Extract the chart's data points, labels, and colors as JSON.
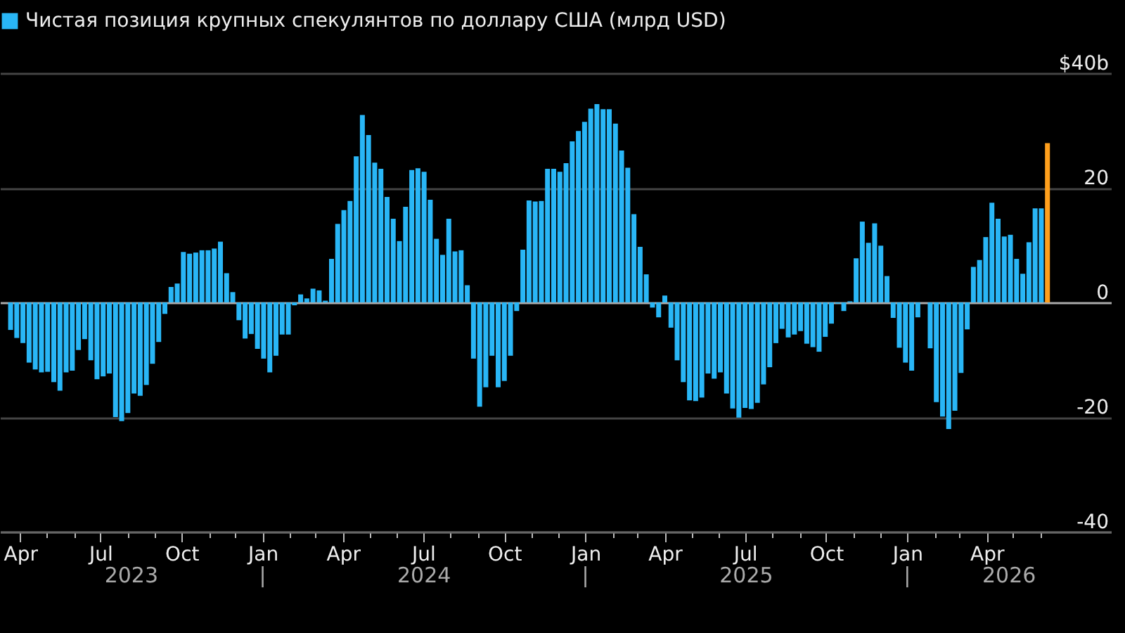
{
  "chart_data": {
    "type": "bar",
    "x": [
      "2023-03-21",
      "2023-03-28",
      "2023-04-04",
      "2023-04-11",
      "2023-04-18",
      "2023-04-25",
      "2023-05-02",
      "2023-05-09",
      "2023-05-16",
      "2023-05-23",
      "2023-05-30",
      "2023-06-06",
      "2023-06-13",
      "2023-06-20",
      "2023-06-27",
      "2023-07-04",
      "2023-07-11",
      "2023-07-18",
      "2023-07-25",
      "2023-08-01",
      "2023-08-08",
      "2023-08-15",
      "2023-08-22",
      "2023-08-29",
      "2023-09-05",
      "2023-09-12",
      "2023-09-19",
      "2023-09-26",
      "2023-10-03",
      "2023-10-10",
      "2023-10-17",
      "2023-10-24",
      "2023-10-31",
      "2023-11-07",
      "2023-11-14",
      "2023-11-21",
      "2023-11-28",
      "2023-12-05",
      "2023-12-12",
      "2023-12-19",
      "2023-12-26",
      "2024-01-02",
      "2024-01-09",
      "2024-01-16",
      "2024-01-23",
      "2024-01-30",
      "2024-02-06",
      "2024-02-13",
      "2024-02-20",
      "2024-02-27",
      "2024-03-05",
      "2024-03-12",
      "2024-03-19",
      "2024-03-26",
      "2024-04-02",
      "2024-04-09",
      "2024-04-16",
      "2024-04-23",
      "2024-04-30",
      "2024-05-07",
      "2024-05-14",
      "2024-05-21",
      "2024-05-28",
      "2024-06-04",
      "2024-06-11",
      "2024-06-18",
      "2024-06-25",
      "2024-07-02",
      "2024-07-09",
      "2024-07-16",
      "2024-07-23",
      "2024-07-30",
      "2024-08-06",
      "2024-08-13",
      "2024-08-20",
      "2024-08-27",
      "2024-09-03",
      "2024-09-10",
      "2024-09-17",
      "2024-09-24",
      "2024-10-01",
      "2024-10-08",
      "2024-10-15",
      "2024-10-22",
      "2024-10-29",
      "2024-11-05",
      "2024-11-12",
      "2024-11-19",
      "2024-11-26",
      "2024-12-03",
      "2024-12-10",
      "2024-12-17",
      "2024-12-24",
      "2024-12-31",
      "2025-01-07",
      "2025-01-14",
      "2025-01-21",
      "2025-01-28",
      "2025-02-04",
      "2025-02-11",
      "2025-02-18",
      "2025-02-25",
      "2025-03-04",
      "2025-03-11",
      "2025-03-18",
      "2025-03-25",
      "2025-04-01",
      "2025-04-08",
      "2025-04-15",
      "2025-04-22",
      "2025-04-29",
      "2025-05-06",
      "2025-05-13",
      "2025-05-20",
      "2025-05-27",
      "2025-06-03",
      "2025-06-10",
      "2025-06-17",
      "2025-06-24",
      "2025-07-01",
      "2025-07-08",
      "2025-07-15",
      "2025-07-22",
      "2025-07-29",
      "2025-08-05",
      "2025-08-12",
      "2025-08-19",
      "2025-08-26",
      "2025-09-02",
      "2025-09-09",
      "2025-09-16",
      "2025-09-23",
      "2025-09-30",
      "2025-10-07",
      "2025-10-14",
      "2025-10-21",
      "2025-10-28",
      "2025-11-04",
      "2025-11-11",
      "2025-11-18",
      "2025-11-25",
      "2025-12-02",
      "2025-12-09",
      "2025-12-16",
      "2025-12-23",
      "2025-12-30",
      "2026-01-06",
      "2026-01-13",
      "2026-01-20",
      "2026-01-27",
      "2026-02-03",
      "2026-02-10",
      "2026-02-17",
      "2026-02-24",
      "2026-03-03",
      "2026-03-10",
      "2026-03-17",
      "2026-03-24",
      "2026-03-31",
      "2026-04-07",
      "2026-04-14",
      "2026-04-21",
      "2026-04-28",
      "2026-05-05",
      "2026-05-12",
      "2026-05-19",
      "2026-05-26",
      "2026-06-02",
      "2026-06-09"
    ],
    "series": [
      {
        "name": "Чистая позиция крупных спекулянтов по доллару США (млрд USD)",
        "color": "#29b6f6",
        "values": [
          -4.8,
          -6.2,
          -7.1,
          -10.5,
          -11.7,
          -12.2,
          -12.1,
          -13.9,
          -15.4,
          -12.2,
          -11.9,
          -8.3,
          -6.4,
          -10.1,
          -13.4,
          -12.9,
          -12.4,
          -20.0,
          -20.7,
          -19.3,
          -15.9,
          -16.3,
          -14.4,
          -10.7,
          -6.9,
          -2.0,
          2.7,
          3.3,
          8.8,
          8.5,
          8.7,
          9.1,
          9.1,
          9.4,
          10.6,
          5.1,
          1.8,
          -3.1,
          -6.3,
          -5.5,
          -8.1,
          -9.8,
          -12.2,
          -9.3,
          -5.6,
          -5.6,
          -0.5,
          1.4,
          0.7,
          2.4,
          2.1,
          0.3,
          7.6,
          13.7,
          16.1,
          17.7,
          25.5,
          32.7,
          29.2,
          24.4,
          23.3,
          18.4,
          14.6,
          10.7,
          16.7,
          23.1,
          23.4,
          22.8,
          17.9,
          11.1,
          8.3,
          14.6,
          8.9,
          9.1,
          3.0,
          -9.8,
          -18.2,
          -14.8,
          -9.3,
          -14.8,
          -13.7,
          -9.3,
          -1.5,
          9.2,
          17.8,
          17.6,
          17.7,
          23.3,
          23.3,
          22.8,
          24.3,
          28.1,
          29.9,
          31.5,
          33.8,
          34.6,
          33.7,
          33.7,
          31.2,
          26.5,
          23.5,
          15.4,
          9.7,
          4.9,
          -0.9,
          -2.6,
          1.2,
          -4.4,
          -10.1,
          -13.9,
          -17.1,
          -17.2,
          -16.6,
          -12.4,
          -13.3,
          -12.2,
          -15.9,
          -18.5,
          -20.1,
          -18.4,
          -18.6,
          -17.5,
          -14.3,
          -11.3,
          -7.1,
          -4.6,
          -6.1,
          -5.6,
          -5.0,
          -7.2,
          -7.8,
          -8.6,
          -6.0,
          -3.7,
          -0.2,
          -1.5,
          0.2,
          7.7,
          14.1,
          10.4,
          13.8,
          9.9,
          4.6,
          -2.7,
          -7.9,
          -10.5,
          -11.9,
          -2.6,
          0,
          -8.0,
          -17.4,
          -19.9,
          -22.1,
          -18.9,
          -12.3,
          -4.7,
          6.2,
          7.4,
          11.4,
          17.4,
          14.6,
          11.5,
          11.8,
          7.6,
          5.0,
          10.5,
          16.4,
          16.4,
          27.8
        ],
        "colors": [
          "#29b6f6",
          "#29b6f6",
          "#29b6f6",
          "#29b6f6",
          "#29b6f6",
          "#29b6f6",
          "#29b6f6",
          "#29b6f6",
          "#29b6f6",
          "#29b6f6",
          "#29b6f6",
          "#29b6f6",
          "#29b6f6",
          "#29b6f6",
          "#29b6f6",
          "#29b6f6",
          "#29b6f6",
          "#29b6f6",
          "#29b6f6",
          "#29b6f6",
          "#29b6f6",
          "#29b6f6",
          "#29b6f6",
          "#29b6f6",
          "#29b6f6",
          "#29b6f6",
          "#29b6f6",
          "#29b6f6",
          "#29b6f6",
          "#29b6f6",
          "#29b6f6",
          "#29b6f6",
          "#29b6f6",
          "#29b6f6",
          "#29b6f6",
          "#29b6f6",
          "#29b6f6",
          "#29b6f6",
          "#29b6f6",
          "#29b6f6",
          "#29b6f6",
          "#29b6f6",
          "#29b6f6",
          "#29b6f6",
          "#29b6f6",
          "#29b6f6",
          "#29b6f6",
          "#29b6f6",
          "#29b6f6",
          "#29b6f6",
          "#29b6f6",
          "#29b6f6",
          "#29b6f6",
          "#29b6f6",
          "#29b6f6",
          "#29b6f6",
          "#29b6f6",
          "#29b6f6",
          "#29b6f6",
          "#29b6f6",
          "#29b6f6",
          "#29b6f6",
          "#29b6f6",
          "#29b6f6",
          "#29b6f6",
          "#29b6f6",
          "#29b6f6",
          "#29b6f6",
          "#29b6f6",
          "#29b6f6",
          "#29b6f6",
          "#29b6f6",
          "#29b6f6",
          "#29b6f6",
          "#29b6f6",
          "#29b6f6",
          "#29b6f6",
          "#29b6f6",
          "#29b6f6",
          "#29b6f6",
          "#29b6f6",
          "#29b6f6",
          "#29b6f6",
          "#29b6f6",
          "#29b6f6",
          "#29b6f6",
          "#29b6f6",
          "#29b6f6",
          "#29b6f6",
          "#29b6f6",
          "#29b6f6",
          "#29b6f6",
          "#29b6f6",
          "#29b6f6",
          "#29b6f6",
          "#29b6f6",
          "#29b6f6",
          "#29b6f6",
          "#29b6f6",
          "#29b6f6",
          "#29b6f6",
          "#29b6f6",
          "#29b6f6",
          "#29b6f6",
          "#29b6f6",
          "#29b6f6",
          "#29b6f6",
          "#29b6f6",
          "#29b6f6",
          "#29b6f6",
          "#29b6f6",
          "#29b6f6",
          "#29b6f6",
          "#29b6f6",
          "#29b6f6",
          "#29b6f6",
          "#29b6f6",
          "#29b6f6",
          "#29b6f6",
          "#29b6f6",
          "#29b6f6",
          "#29b6f6",
          "#29b6f6",
          "#29b6f6",
          "#29b6f6",
          "#29b6f6",
          "#29b6f6",
          "#29b6f6",
          "#29b6f6",
          "#29b6f6",
          "#29b6f6",
          "#29b6f6",
          "#29b6f6",
          "#29b6f6",
          "#29b6f6",
          "#29b6f6",
          "#29b6f6",
          "#29b6f6",
          "#29b6f6",
          "#29b6f6",
          "#29b6f6",
          "#29b6f6",
          "#29b6f6",
          "#29b6f6",
          "#29b6f6",
          "#29b6f6",
          "#29b6f6",
          "#29b6f6",
          "#29b6f6",
          "#29b6f6",
          "#29b6f6",
          "#29b6f6",
          "#29b6f6",
          "#29b6f6",
          "#29b6f6",
          "#29b6f6",
          "#29b6f6",
          "#29b6f6",
          "#29b6f6",
          "#29b6f6",
          "#29b6f6",
          "#29b6f6",
          "#29b6f6",
          "#29b6f6",
          "#29b6f6",
          "#29b6f6",
          "#29b6f6",
          "#29b6f6",
          "#ff9f1c"
        ]
      }
    ],
    "xlim": [
      "2023-03-09",
      "2026-08-20"
    ],
    "xticks": [
      {
        "value": "2023-04-01",
        "label": "Apr"
      },
      {
        "value": "2023-05-01",
        "label": null
      },
      {
        "value": "2023-06-01",
        "label": null
      },
      {
        "value": "2023-07-01",
        "label": "Jul"
      },
      {
        "value": "2023-08-01",
        "label": null
      },
      {
        "value": "2023-09-01",
        "label": null
      },
      {
        "value": "2023-10-01",
        "label": "Oct"
      },
      {
        "value": "2023-11-01",
        "label": null
      },
      {
        "value": "2023-12-01",
        "label": null
      },
      {
        "value": "2024-01-01",
        "label": "Jan"
      },
      {
        "value": "2024-02-01",
        "label": null
      },
      {
        "value": "2024-03-01",
        "label": null
      },
      {
        "value": "2024-04-01",
        "label": "Apr"
      },
      {
        "value": "2024-05-01",
        "label": null
      },
      {
        "value": "2024-06-01",
        "label": null
      },
      {
        "value": "2024-07-01",
        "label": "Jul"
      },
      {
        "value": "2024-08-01",
        "label": null
      },
      {
        "value": "2024-09-01",
        "label": null
      },
      {
        "value": "2024-10-01",
        "label": "Oct"
      },
      {
        "value": "2024-11-01",
        "label": null
      },
      {
        "value": "2024-12-01",
        "label": null
      },
      {
        "value": "2025-01-01",
        "label": "Jan"
      },
      {
        "value": "2025-02-01",
        "label": null
      },
      {
        "value": "2025-03-01",
        "label": null
      },
      {
        "value": "2025-04-01",
        "label": "Apr"
      },
      {
        "value": "2025-05-01",
        "label": null
      },
      {
        "value": "2025-06-01",
        "label": null
      },
      {
        "value": "2025-07-01",
        "label": "Jul"
      },
      {
        "value": "2025-08-01",
        "label": null
      },
      {
        "value": "2025-09-01",
        "label": null
      },
      {
        "value": "2025-10-01",
        "label": "Oct"
      },
      {
        "value": "2025-11-01",
        "label": null
      },
      {
        "value": "2025-12-01",
        "label": null
      },
      {
        "value": "2026-01-01",
        "label": "Jan"
      },
      {
        "value": "2026-02-01",
        "label": null
      },
      {
        "value": "2026-03-01",
        "label": null
      },
      {
        "value": "2026-04-01",
        "label": "Apr"
      },
      {
        "value": "2026-05-01",
        "label": null
      },
      {
        "value": "2026-06-01",
        "label": null
      }
    ],
    "ylim": [
      -40,
      40
    ],
    "yticks": [
      -40,
      -20,
      0,
      20,
      {
        "value": 40,
        "label": "$40b"
      }
    ],
    "grid": "y",
    "legend": "top left",
    "annotations": [
      "2023",
      "|",
      "2024",
      "|",
      "2025",
      "|",
      "2026"
    ]
  }
}
